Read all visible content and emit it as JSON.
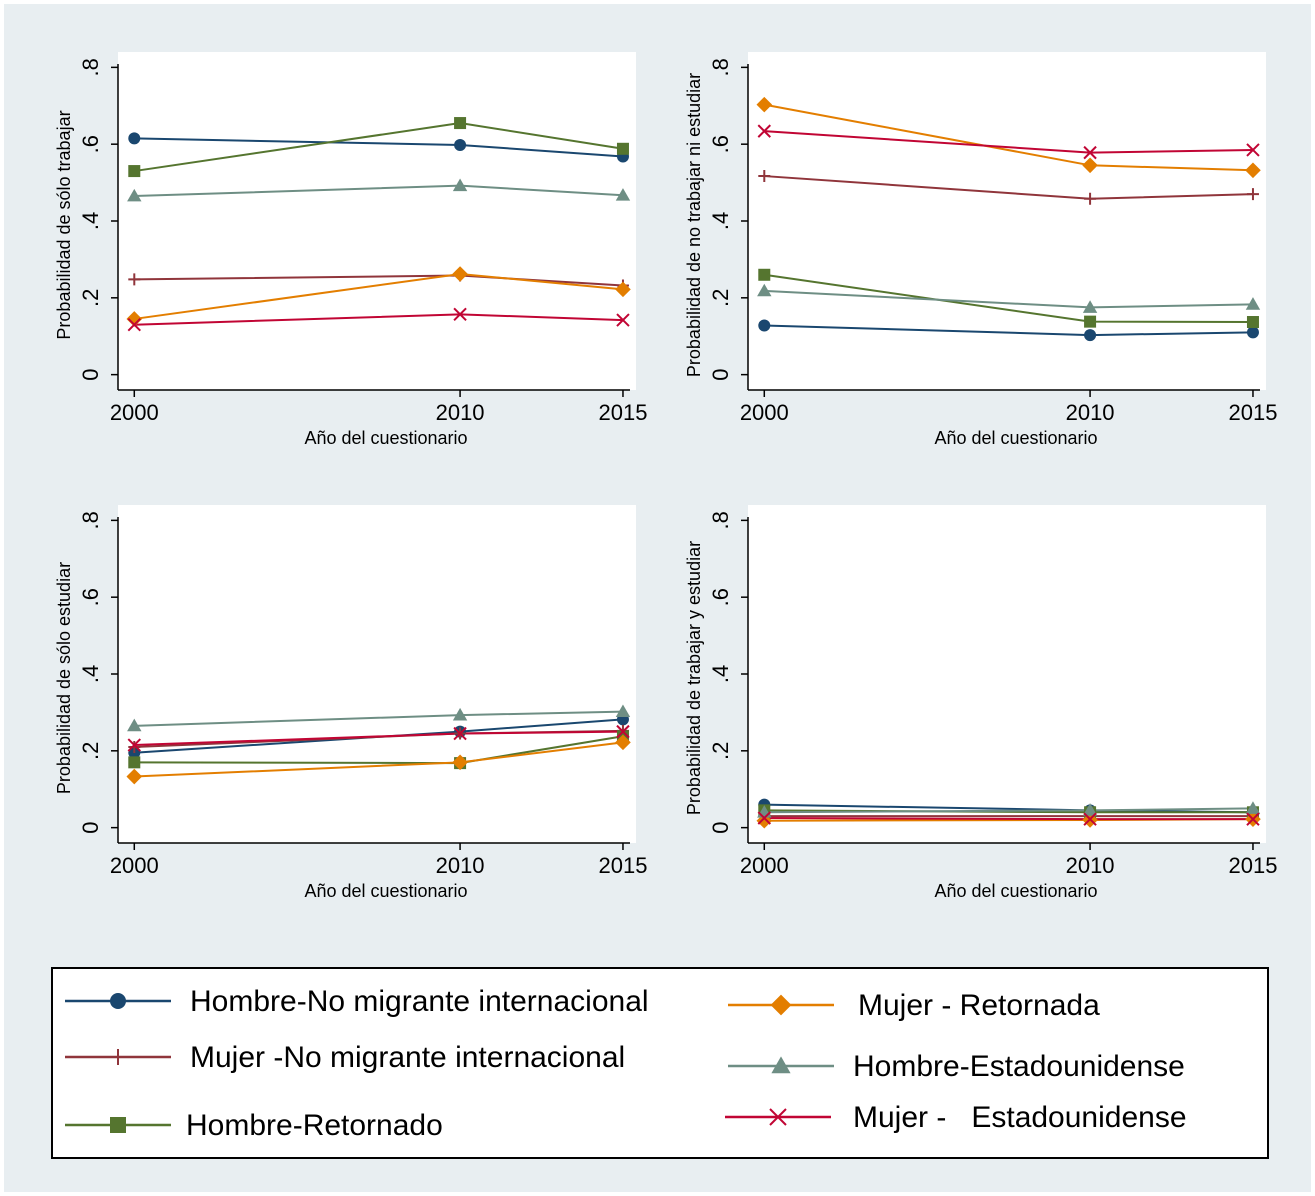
{
  "chart_data": [
    {
      "type": "line",
      "y_label": "Probabilidad de sólo trabajar",
      "x_label": "Año del cuestionario",
      "x": [
        2000,
        2010,
        2015
      ],
      "xlim": [
        1999.5,
        2015.4
      ],
      "xticks": [
        2000,
        2010,
        2015
      ],
      "ylim": [
        -0.04,
        0.84
      ],
      "yticks": [
        {
          "value": 0,
          "label": "0"
        },
        {
          "value": 0.2,
          "label": ".2"
        },
        {
          "value": 0.4,
          "label": ".4"
        },
        {
          "value": 0.6,
          "label": ".6"
        },
        {
          "value": 0.8,
          "label": ".8"
        }
      ],
      "series": [
        {
          "values": [
            0.615,
            0.598,
            0.568
          ]
        },
        {
          "values": [
            0.248,
            0.258,
            0.232
          ]
        },
        {
          "values": [
            0.53,
            0.655,
            0.588
          ]
        },
        {
          "values": [
            0.145,
            0.262,
            0.222
          ]
        },
        {
          "values": [
            0.465,
            0.492,
            0.467
          ]
        },
        {
          "values": [
            0.13,
            0.157,
            0.142
          ]
        }
      ]
    },
    {
      "type": "line",
      "y_label": "Probabilidad de no trabajar ni estudiar",
      "x_label": "Año del cuestionario",
      "x": [
        2000,
        2010,
        2015
      ],
      "xlim": [
        1999.5,
        2015.4
      ],
      "xticks": [
        2000,
        2010,
        2015
      ],
      "ylim": [
        -0.04,
        0.84
      ],
      "yticks": [
        {
          "value": 0,
          "label": "0"
        },
        {
          "value": 0.2,
          "label": ".2"
        },
        {
          "value": 0.4,
          "label": ".4"
        },
        {
          "value": 0.6,
          "label": ".6"
        },
        {
          "value": 0.8,
          "label": ".8"
        }
      ],
      "series": [
        {
          "values": [
            0.128,
            0.103,
            0.11
          ]
        },
        {
          "values": [
            0.517,
            0.458,
            0.47
          ]
        },
        {
          "values": [
            0.26,
            0.138,
            0.137
          ]
        },
        {
          "values": [
            0.703,
            0.545,
            0.532
          ]
        },
        {
          "values": [
            0.218,
            0.175,
            0.183
          ]
        },
        {
          "values": [
            0.634,
            0.578,
            0.585
          ]
        }
      ]
    },
    {
      "type": "line",
      "y_label": "Probabilidad de sólo estudiar",
      "x_label": "Año del cuestionario",
      "x": [
        2000,
        2010,
        2015
      ],
      "xlim": [
        1999.5,
        2015.4
      ],
      "xticks": [
        2000,
        2010,
        2015
      ],
      "ylim": [
        -0.04,
        0.84
      ],
      "yticks": [
        {
          "value": 0,
          "label": "0"
        },
        {
          "value": 0.2,
          "label": ".2"
        },
        {
          "value": 0.4,
          "label": ".4"
        },
        {
          "value": 0.6,
          "label": ".6"
        },
        {
          "value": 0.8,
          "label": ".8"
        }
      ],
      "series": [
        {
          "values": [
            0.195,
            0.25,
            0.282
          ]
        },
        {
          "values": [
            0.21,
            0.245,
            0.252
          ]
        },
        {
          "values": [
            0.17,
            0.168,
            0.238
          ]
        },
        {
          "values": [
            0.133,
            0.17,
            0.222
          ]
        },
        {
          "values": [
            0.265,
            0.293,
            0.302
          ]
        },
        {
          "values": [
            0.215,
            0.245,
            0.25
          ]
        }
      ]
    },
    {
      "type": "line",
      "y_label": "Probabilidad de trabajar y estudiar",
      "x_label": "Año del cuestionario",
      "x": [
        2000,
        2010,
        2015
      ],
      "xlim": [
        1999.5,
        2015.4
      ],
      "xticks": [
        2000,
        2010,
        2015
      ],
      "ylim": [
        -0.04,
        0.84
      ],
      "yticks": [
        {
          "value": 0,
          "label": "0"
        },
        {
          "value": 0.2,
          "label": ".2"
        },
        {
          "value": 0.4,
          "label": ".4"
        },
        {
          "value": 0.6,
          "label": ".6"
        },
        {
          "value": 0.8,
          "label": ".8"
        }
      ],
      "series": [
        {
          "values": [
            0.06,
            0.045,
            0.04
          ]
        },
        {
          "values": [
            0.03,
            0.03,
            0.03
          ]
        },
        {
          "values": [
            0.045,
            0.04,
            0.04
          ]
        },
        {
          "values": [
            0.018,
            0.02,
            0.022
          ]
        },
        {
          "values": [
            0.04,
            0.045,
            0.05
          ]
        },
        {
          "values": [
            0.025,
            0.022,
            0.022
          ]
        }
      ]
    }
  ],
  "legend": {
    "entries": [
      {
        "name": "Hombre-No migrante internacional",
        "color": "#1a476f",
        "marker": "circle"
      },
      {
        "name": "Mujer -No migrante internacional",
        "color": "#90353b",
        "marker": "plus"
      },
      {
        "name": "Hombre-Retornado",
        "color": "#55752f",
        "marker": "square"
      },
      {
        "name": "Mujer - Retornada",
        "color": "#e37e00",
        "marker": "diamond"
      },
      {
        "name": "Hombre-Estadounidense",
        "color": "#6e8e84",
        "marker": "triangle"
      },
      {
        "name": "Mujer -   Estadounidense",
        "color": "#c10534",
        "marker": "x"
      }
    ]
  }
}
